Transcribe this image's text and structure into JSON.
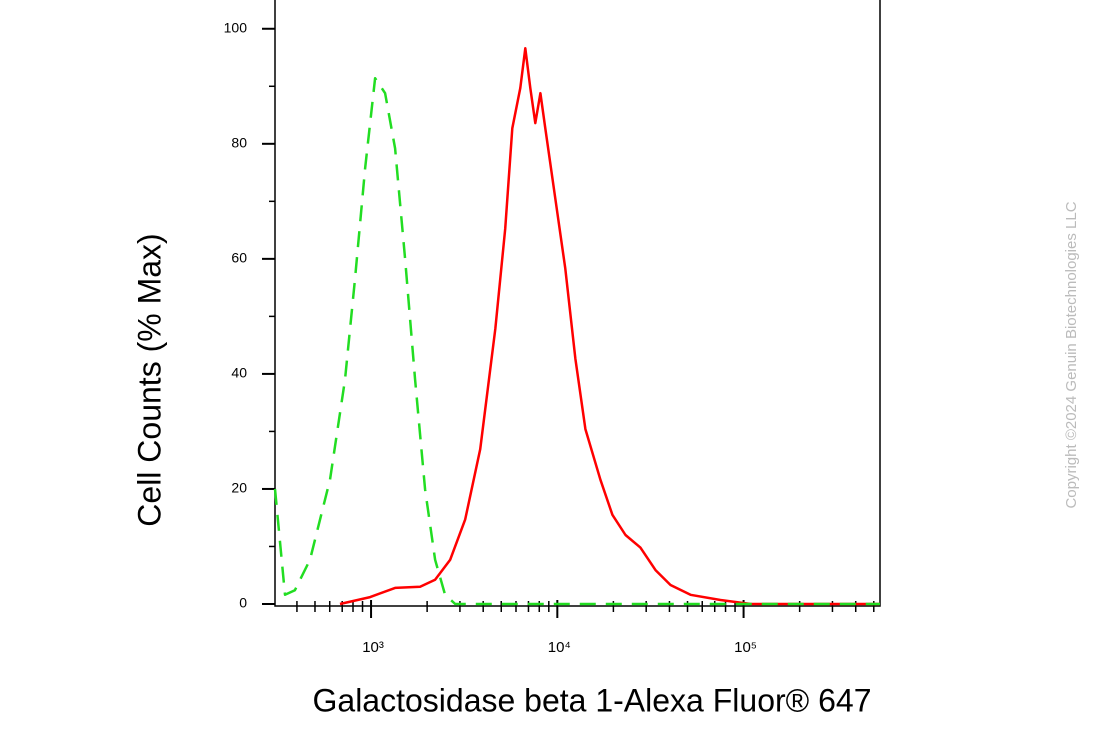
{
  "chart_data": {
    "type": "line",
    "x_label": "Galactosidase beta 1-Alexa Fluor® 647",
    "y_label": "Cell Counts (% Max)",
    "watermark": "Copyright ©2024 Genuin Biotechnologies LLC",
    "xscale": "log",
    "xlim": [
      305,
      540000
    ],
    "ylim": [
      0,
      105
    ],
    "xticks": [
      {
        "value": 1000,
        "label": "10³"
      },
      {
        "value": 10000,
        "label": "10⁴"
      },
      {
        "value": 100000,
        "label": "10⁵"
      }
    ],
    "xminorticks": [
      400,
      500,
      600,
      700,
      800,
      900,
      2000,
      3000,
      4000,
      5000,
      6000,
      7000,
      8000,
      9000,
      20000,
      30000,
      40000,
      50000,
      60000,
      70000,
      80000,
      90000,
      200000,
      300000,
      400000,
      500000
    ],
    "yticks": [
      0,
      20,
      40,
      60,
      80,
      100
    ],
    "yminorticks": [
      10,
      30,
      50,
      70,
      90
    ],
    "series": [
      {
        "color": "#ff0000",
        "style": "solid",
        "x": [
          681,
          988,
          1346,
          1834,
          2208,
          2660,
          3201,
          3856,
          4644,
          5250,
          5729,
          6324,
          6730,
          7161,
          7620,
          8108,
          8618,
          9750,
          11040,
          12500,
          14150,
          17030,
          19760,
          23220,
          27930,
          33650,
          40520,
          51880,
          75200,
          109000,
          540000
        ],
        "values": [
          0,
          1.2,
          2.8,
          3,
          4.2,
          7.7,
          14.7,
          26.9,
          47.8,
          65.2,
          82.7,
          89.7,
          96.6,
          89.7,
          83.6,
          88.8,
          82.7,
          70.5,
          58.3,
          42.6,
          30.4,
          21.6,
          15.5,
          12,
          9.8,
          5.9,
          3.3,
          1.6,
          0.7,
          0,
          0
        ]
      },
      {
        "color": "#22dd22",
        "style": "dashed",
        "x": [
          305,
          345,
          390,
          470,
          602,
          725,
          820,
          929,
          1051,
          1190,
          1346,
          1523,
          1724,
          1951,
          2208,
          2499,
          2830,
          540000
        ],
        "values": [
          20,
          1.6,
          2.4,
          7.7,
          21.6,
          39,
          56.5,
          75.7,
          91.4,
          88.8,
          79.2,
          60,
          39,
          19.9,
          7.7,
          1.6,
          0,
          0
        ]
      }
    ]
  }
}
